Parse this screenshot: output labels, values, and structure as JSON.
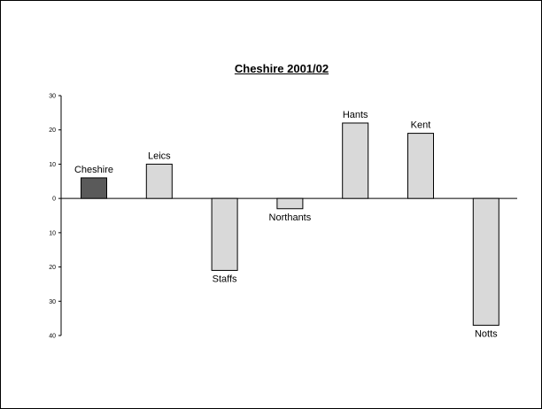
{
  "chart_data": {
    "type": "bar",
    "title": "Cheshire 2001/02",
    "xlabel": "",
    "ylabel": "",
    "categories": [
      "Cheshire",
      "Leics",
      "Staffs",
      "Northants",
      "Hants",
      "Kent",
      "Notts"
    ],
    "values": [
      6,
      10,
      -21,
      -3,
      22,
      19,
      -37
    ],
    "y_tick_values": [
      30,
      20,
      10,
      0,
      -10,
      -20,
      -30,
      -40
    ],
    "y_tick_labels": [
      "30",
      "20",
      "10",
      "0",
      "10",
      "20",
      "30",
      "40"
    ],
    "ylim": [
      -40,
      30
    ],
    "grid": false,
    "legend": "none",
    "colors": {
      "highlight": "#5a5a5a",
      "bar": "#d9d9d9",
      "outline": "#000000"
    },
    "highlight_category": "Cheshire"
  }
}
